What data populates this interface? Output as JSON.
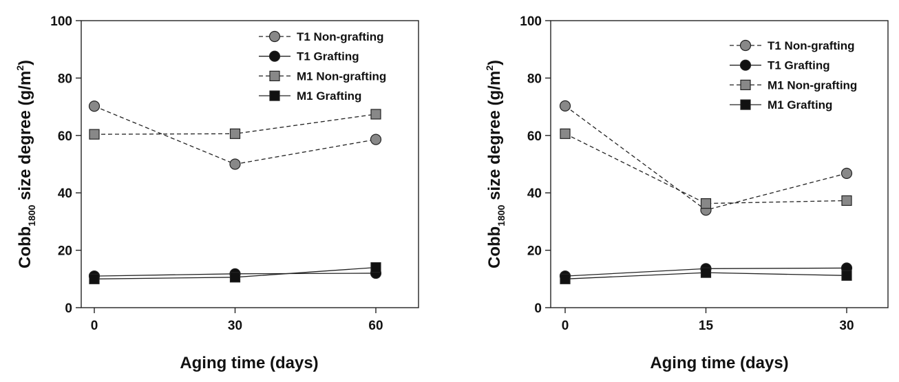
{
  "chart_data": [
    {
      "type": "line",
      "xlabel": "Aging time (days)",
      "ylabel": {
        "main": "Cobb",
        "sub": "1800",
        "rest": " size degree (g/m",
        "sup": "2",
        "end": ")"
      },
      "x": [
        0,
        30,
        60
      ],
      "xticks": [
        "0",
        "30",
        "60"
      ],
      "yticks": [
        "0",
        "20",
        "40",
        "60",
        "80",
        "100"
      ],
      "ylim": [
        0,
        100
      ],
      "legend": "top-right",
      "series": [
        {
          "name": "T1 Non-grafting",
          "values": [
            70.2,
            50.0,
            58.6
          ],
          "marker": "circle",
          "fill": "#888888",
          "dashed": true
        },
        {
          "name": "T1 Grafting",
          "values": [
            11.0,
            11.8,
            12.0
          ],
          "marker": "circle",
          "fill": "#111111",
          "dashed": false
        },
        {
          "name": "M1 Non-grafting",
          "values": [
            60.4,
            60.6,
            67.4
          ],
          "marker": "square",
          "fill": "#888888",
          "dashed": true
        },
        {
          "name": "M1 Grafting",
          "values": [
            10.0,
            10.6,
            14.0
          ],
          "marker": "square",
          "fill": "#111111",
          "dashed": false
        }
      ]
    },
    {
      "type": "line",
      "xlabel": "Aging time (days)",
      "ylabel": {
        "main": "Cobb",
        "sub": "1800",
        "rest": " size degree (g/m",
        "sup": "2",
        "end": ")"
      },
      "x": [
        0,
        15,
        30
      ],
      "xticks": [
        "0",
        "15",
        "30"
      ],
      "yticks": [
        "0",
        "20",
        "40",
        "60",
        "80",
        "100"
      ],
      "ylim": [
        0,
        100
      ],
      "legend": "top-right",
      "series": [
        {
          "name": "T1 Non-grafting",
          "values": [
            70.3,
            34.0,
            46.8
          ],
          "marker": "circle",
          "fill": "#888888",
          "dashed": true
        },
        {
          "name": "T1 Grafting",
          "values": [
            11.0,
            13.6,
            13.8
          ],
          "marker": "circle",
          "fill": "#111111",
          "dashed": false
        },
        {
          "name": "M1 Non-grafting",
          "values": [
            60.6,
            36.3,
            37.3
          ],
          "marker": "square",
          "fill": "#888888",
          "dashed": true
        },
        {
          "name": "M1 Grafting",
          "values": [
            10.0,
            12.2,
            11.2
          ],
          "marker": "square",
          "fill": "#111111",
          "dashed": false
        }
      ]
    }
  ]
}
